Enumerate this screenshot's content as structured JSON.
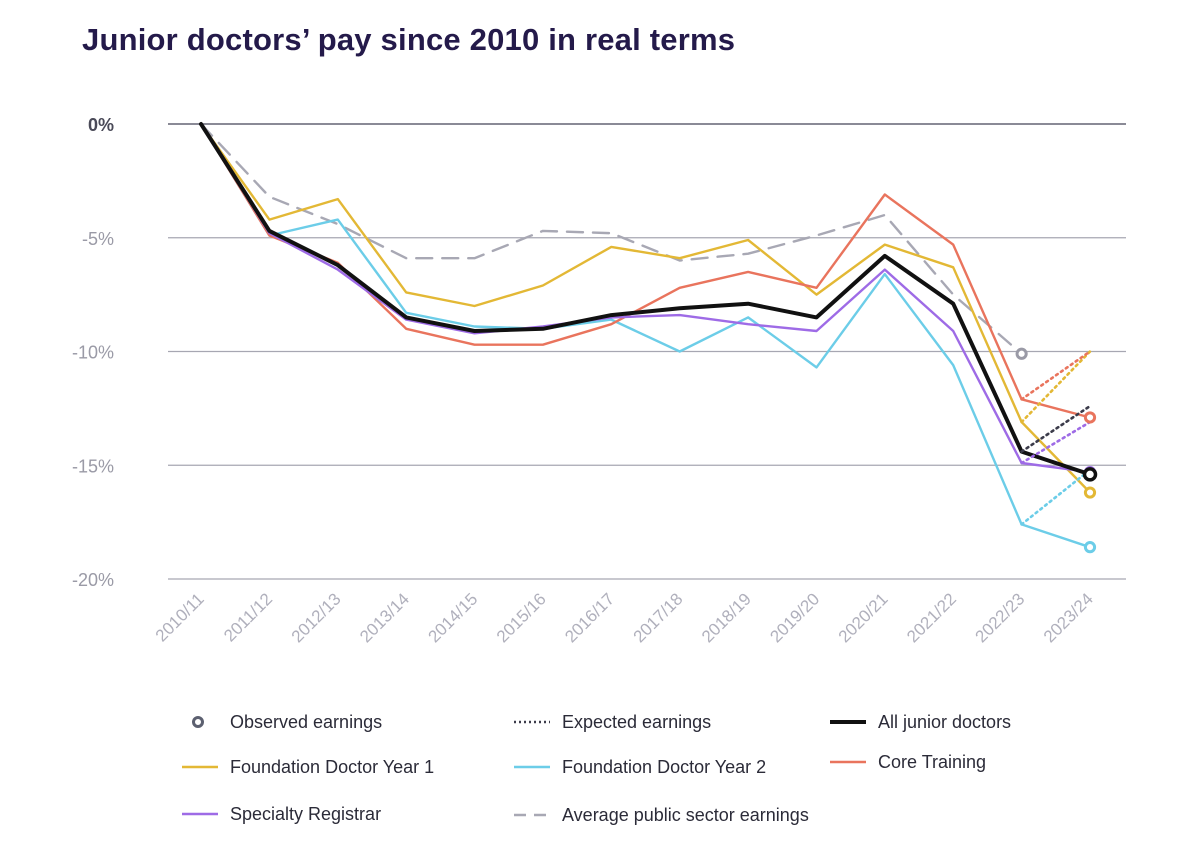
{
  "chart_data": {
    "type": "line",
    "title": "Junior doctors’ pay since 2010 in real terms",
    "xlabel": "",
    "ylabel": "",
    "categories": [
      "2010/11",
      "2011/12",
      "2012/13",
      "2013/14",
      "2014/15",
      "2015/16",
      "2016/17",
      "2017/18",
      "2018/19",
      "2019/20",
      "2020/21",
      "2021/22",
      "2022/23",
      "2023/24"
    ],
    "ylim": [
      -20,
      0
    ],
    "yticks": [
      0,
      -5,
      -10,
      -15,
      -20
    ],
    "ytick_labels": [
      "0%",
      "-5%",
      "-10%",
      "-15%",
      "-20%"
    ],
    "grid": true,
    "series": [
      {
        "name": "Average public sector earnings",
        "style": "dashed",
        "color": "#a8a8b4",
        "values": [
          0,
          -3.2,
          -4.4,
          -5.9,
          -5.9,
          -4.7,
          -4.8,
          -6.0,
          -5.7,
          -4.9,
          -4.0,
          -7.5,
          -10.1,
          null
        ],
        "observed_end": -10.1,
        "observed_index": 12
      },
      {
        "name": "Foundation Doctor Year 1",
        "style": "solid",
        "color": "#e3b835",
        "values": [
          0,
          -4.2,
          -3.3,
          -7.4,
          -8.0,
          -7.1,
          -5.4,
          -5.9,
          -5.1,
          -7.5,
          -5.3,
          -6.3,
          -13.1,
          -16.2
        ],
        "expected": [
          -13.1,
          -10.0
        ],
        "observed_end": -16.2
      },
      {
        "name": "Foundation Doctor Year 2",
        "style": "solid",
        "color": "#6ccde8",
        "values": [
          0,
          -4.9,
          -4.2,
          -8.3,
          -8.9,
          -9.0,
          -8.6,
          -10.0,
          -8.5,
          -10.7,
          -6.6,
          -10.6,
          -17.6,
          -18.6
        ],
        "expected": [
          -17.6,
          -15.2
        ],
        "observed_end": -18.6
      },
      {
        "name": "Core Training",
        "style": "solid",
        "color": "#e9745d",
        "values": [
          0,
          -4.9,
          -6.1,
          -9.0,
          -9.7,
          -9.7,
          -8.8,
          -7.2,
          -6.5,
          -7.2,
          -3.1,
          -5.3,
          -12.1,
          -12.9
        ],
        "expected": [
          -12.1,
          -10.0
        ],
        "observed_end": -12.9
      },
      {
        "name": "Specialty Registrar",
        "style": "solid",
        "color": "#9e6be6",
        "values": [
          0,
          -4.8,
          -6.4,
          -8.6,
          -9.2,
          -8.9,
          -8.5,
          -8.4,
          -8.8,
          -9.1,
          -6.4,
          -9.1,
          -14.9,
          -15.3
        ],
        "expected": [
          -14.9,
          -13.1
        ],
        "observed_end": -15.3
      },
      {
        "name": "All junior doctors",
        "style": "solid",
        "color": "#111111",
        "values": [
          0,
          -4.7,
          -6.2,
          -8.5,
          -9.1,
          -9.0,
          -8.4,
          -8.1,
          -7.9,
          -8.5,
          -5.8,
          -7.9,
          -14.4,
          -15.4
        ],
        "expected": [
          -14.4,
          -12.4
        ],
        "observed_end": -15.4
      }
    ]
  },
  "legend": {
    "observed": "Observed earnings",
    "expected": "Expected earnings",
    "all": "All junior doctors",
    "fy1": "Foundation Doctor Year 1",
    "fy2": "Foundation Doctor Year 2",
    "core": "Core Training",
    "specialty": "Specialty Registrar",
    "public": "Average public sector earnings"
  },
  "colors": {
    "title": "#241a4a",
    "grid": "#a7a7b2",
    "zero_line": "#8a8a96",
    "tick_zero": "#4a4a58",
    "tick": "#9a9aa6",
    "observed_marker": "#5c6070",
    "expected_marker": "#3b3b4a"
  }
}
